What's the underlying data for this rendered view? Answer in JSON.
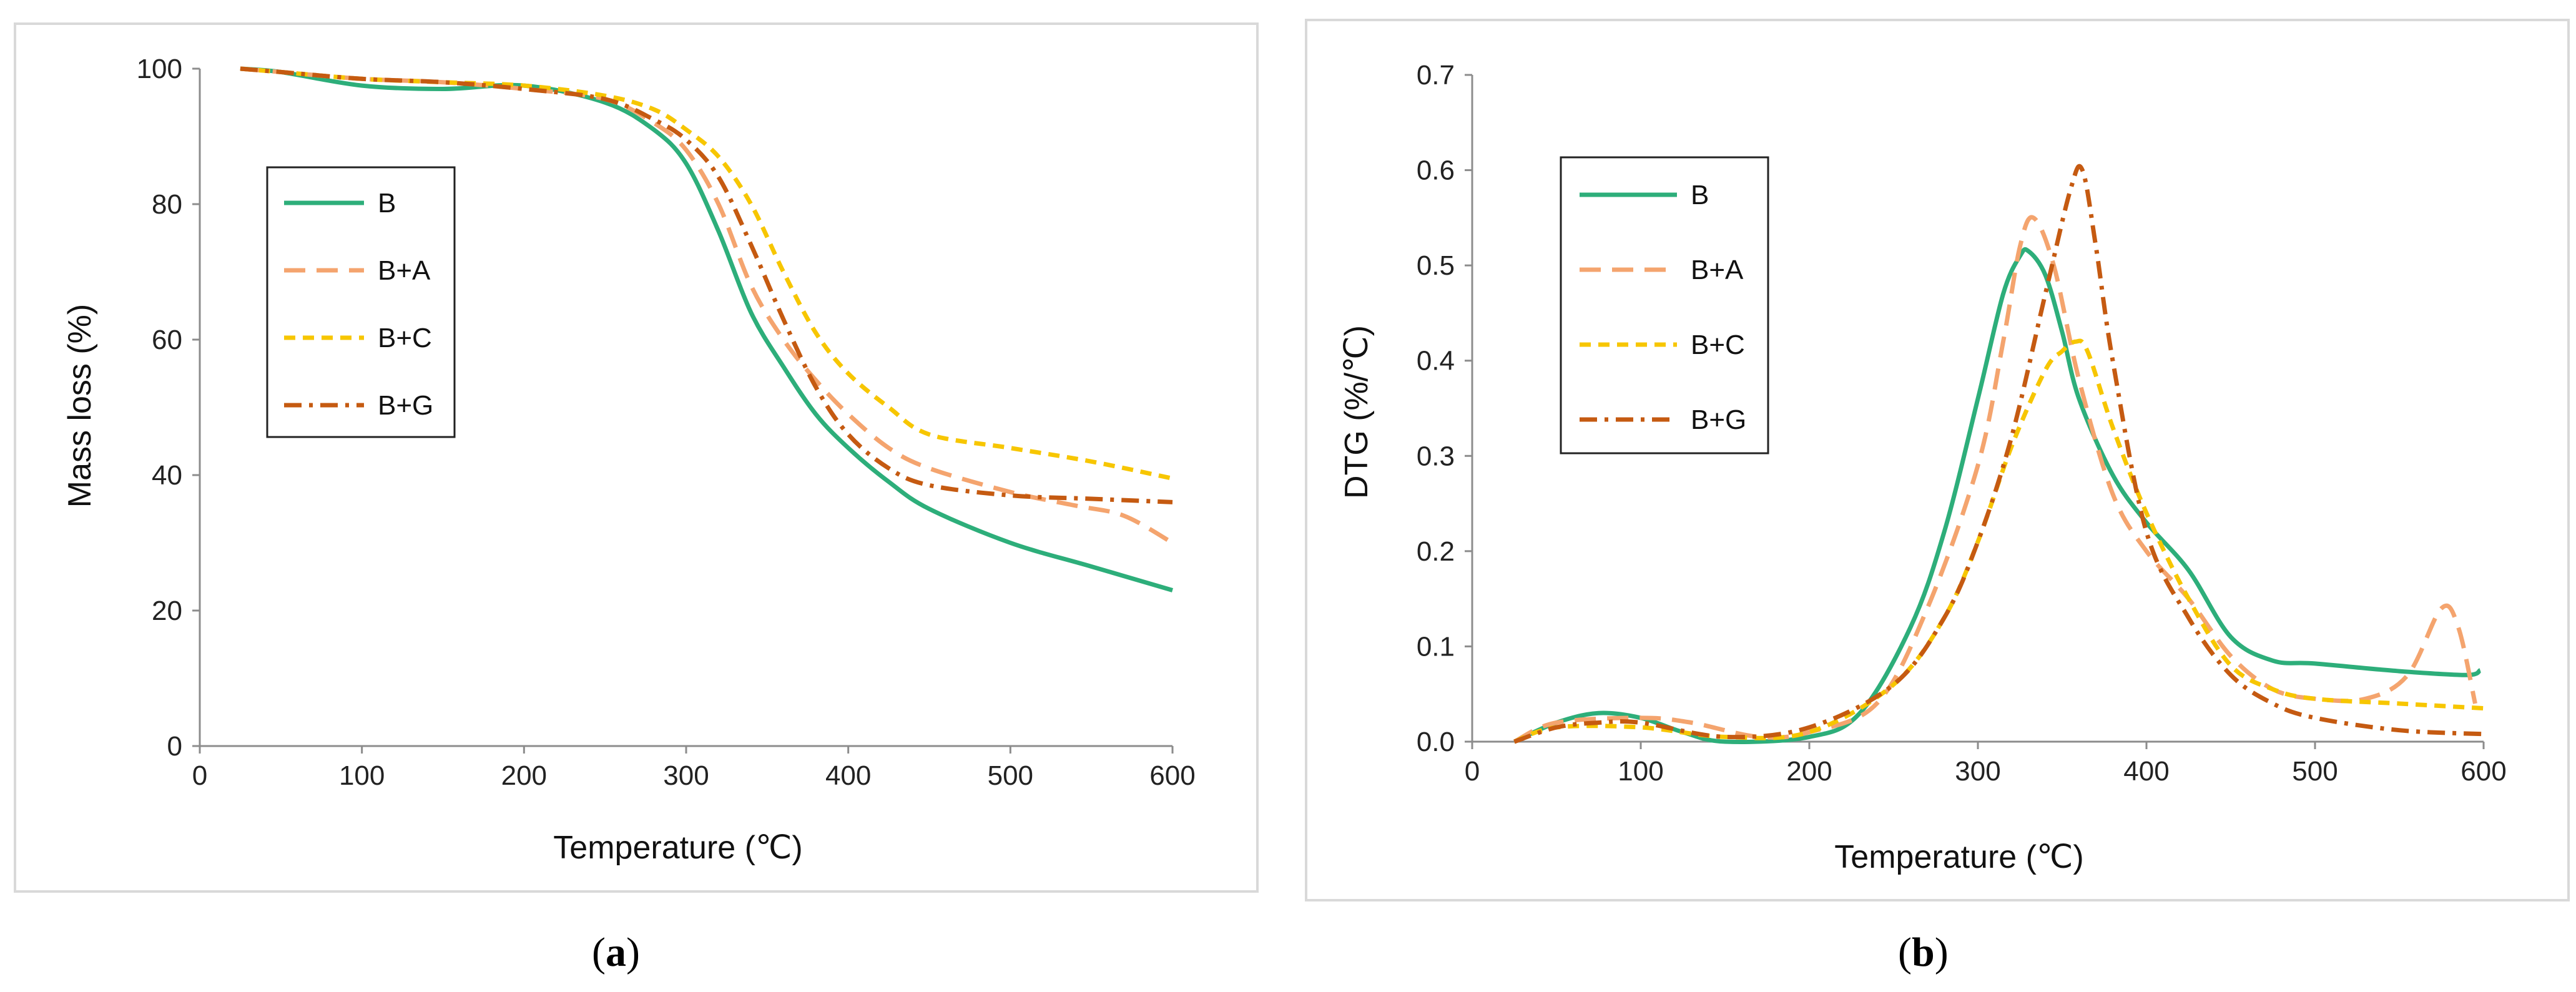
{
  "captions": {
    "a": "a",
    "b": "b"
  },
  "chart_data": [
    {
      "id": "a",
      "type": "line",
      "xlabel": "Temperature (℃)",
      "ylabel": "Mass loss (%)",
      "xlim": [
        0,
        600
      ],
      "ylim": [
        0,
        100
      ],
      "xticks": [
        0,
        100,
        200,
        300,
        400,
        500,
        600
      ],
      "yticks": [
        0,
        20,
        40,
        60,
        80,
        100
      ],
      "legend_position": "upper-left",
      "series": [
        {
          "name": "B",
          "color": "#2dae7a",
          "dash": "solid",
          "x": [
            25,
            50,
            100,
            150,
            200,
            250,
            280,
            300,
            320,
            340,
            360,
            380,
            400,
            425,
            450,
            500,
            550,
            600
          ],
          "y": [
            100,
            99.5,
            97.5,
            97,
            97.5,
            95,
            91,
            86,
            76,
            64,
            56,
            49,
            44,
            39,
            35,
            30,
            26.5,
            23
          ]
        },
        {
          "name": "B+A",
          "color": "#f4a46e",
          "dash": "long",
          "x": [
            25,
            50,
            100,
            150,
            200,
            250,
            280,
            300,
            320,
            340,
            360,
            380,
            400,
            425,
            450,
            500,
            540,
            570,
            600
          ],
          "y": [
            100,
            99.5,
            98.5,
            98,
            97,
            95.5,
            92,
            88,
            80,
            68,
            60,
            54,
            49,
            44,
            41,
            37.5,
            35.5,
            34,
            30
          ]
        },
        {
          "name": "B+C",
          "color": "#f7c600",
          "dash": "short",
          "x": [
            25,
            50,
            100,
            150,
            200,
            250,
            280,
            300,
            320,
            340,
            360,
            380,
            400,
            425,
            450,
            500,
            550,
            600
          ],
          "y": [
            100,
            99.5,
            98.5,
            98,
            97.5,
            96,
            94,
            91,
            87,
            80,
            70,
            61,
            55,
            50,
            46,
            44,
            42,
            39.5
          ]
        },
        {
          "name": "B+G",
          "color": "#c55a11",
          "dash": "dashdot",
          "x": [
            25,
            50,
            100,
            150,
            200,
            250,
            280,
            300,
            320,
            340,
            360,
            380,
            400,
            425,
            450,
            500,
            550,
            600
          ],
          "y": [
            100,
            99.5,
            98.5,
            98,
            97,
            95.5,
            92.5,
            89.5,
            84,
            74,
            63,
            53,
            46,
            41,
            38.5,
            37,
            36.5,
            36
          ]
        }
      ]
    },
    {
      "id": "b",
      "type": "line",
      "xlabel": "Temperature (℃)",
      "ylabel": "DTG (%/℃)",
      "xlim": [
        0,
        600
      ],
      "ylim": [
        0,
        0.7
      ],
      "xticks": [
        0,
        100,
        200,
        300,
        400,
        500,
        600
      ],
      "yticks": [
        "0.0",
        "0.1",
        "0.2",
        "0.3",
        "0.4",
        "0.5",
        "0.6",
        "0.7"
      ],
      "legend_position": "upper-left",
      "series": [
        {
          "name": "B",
          "color": "#2dae7a",
          "dash": "solid",
          "x": [
            25,
            50,
            75,
            100,
            125,
            150,
            200,
            230,
            260,
            280,
            300,
            315,
            325,
            330,
            340,
            350,
            360,
            380,
            400,
            425,
            450,
            475,
            500,
            550,
            590,
            598
          ],
          "y": [
            0,
            0.02,
            0.03,
            0.025,
            0.01,
            0,
            0.005,
            0.03,
            0.12,
            0.22,
            0.36,
            0.47,
            0.51,
            0.515,
            0.49,
            0.43,
            0.36,
            0.28,
            0.23,
            0.18,
            0.11,
            0.085,
            0.082,
            0.074,
            0.07,
            0.075
          ]
        },
        {
          "name": "B+A",
          "color": "#f4a46e",
          "dash": "long",
          "x": [
            25,
            50,
            100,
            130,
            170,
            200,
            240,
            270,
            300,
            315,
            325,
            333,
            345,
            360,
            380,
            400,
            425,
            450,
            475,
            500,
            530,
            555,
            575,
            585,
            595
          ],
          "y": [
            0,
            0.02,
            0.025,
            0.02,
            0.005,
            0.01,
            0.04,
            0.14,
            0.29,
            0.42,
            0.52,
            0.55,
            0.5,
            0.38,
            0.26,
            0.2,
            0.15,
            0.09,
            0.055,
            0.045,
            0.045,
            0.07,
            0.14,
            0.12,
            0.04
          ]
        },
        {
          "name": "B+C",
          "color": "#f7c600",
          "dash": "short",
          "x": [
            25,
            50,
            100,
            150,
            200,
            250,
            280,
            300,
            320,
            340,
            350,
            358,
            365,
            380,
            400,
            425,
            450,
            475,
            500,
            550,
            600
          ],
          "y": [
            0,
            0.015,
            0.015,
            0.005,
            0.01,
            0.06,
            0.13,
            0.21,
            0.31,
            0.39,
            0.41,
            0.42,
            0.41,
            0.33,
            0.24,
            0.15,
            0.08,
            0.055,
            0.045,
            0.04,
            0.035
          ]
        },
        {
          "name": "B+G",
          "color": "#c55a11",
          "dash": "dashdot",
          "x": [
            25,
            50,
            75,
            100,
            150,
            200,
            250,
            280,
            300,
            320,
            340,
            355,
            362,
            370,
            380,
            400,
            425,
            450,
            475,
            500,
            550,
            600
          ],
          "y": [
            0,
            0.015,
            0.02,
            0.02,
            0.005,
            0.015,
            0.06,
            0.13,
            0.21,
            0.32,
            0.47,
            0.58,
            0.6,
            0.52,
            0.4,
            0.22,
            0.13,
            0.07,
            0.04,
            0.025,
            0.012,
            0.008
          ]
        }
      ]
    }
  ]
}
